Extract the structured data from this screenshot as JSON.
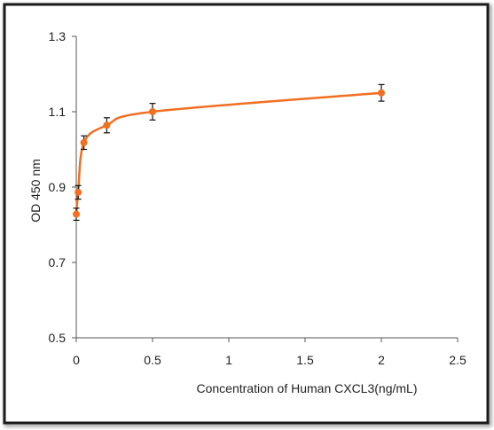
{
  "chart_data": {
    "type": "line",
    "title": "",
    "xlabel": "Concentration of Human CXCL3(ng/mL)",
    "ylabel": "OD 450 nm",
    "xlim": [
      0,
      2.5
    ],
    "ylim": [
      0.5,
      1.3
    ],
    "x_ticks": [
      0,
      0.5,
      1,
      1.5,
      2,
      2.5
    ],
    "x_tick_labels": [
      "0",
      "0.5",
      "1",
      "1.5",
      "2",
      "2.5"
    ],
    "y_ticks": [
      0.5,
      0.7,
      0.9,
      1.1,
      1.3
    ],
    "y_tick_labels": [
      "0.5",
      "0.7",
      "0.9",
      "1.1",
      "1.3"
    ],
    "grid": false,
    "legend": "none",
    "series": [
      {
        "x": [
          0,
          0.0125,
          0.05,
          0.2,
          0.5,
          2
        ],
        "y": [
          0.828,
          0.886,
          1.018,
          1.064,
          1.1,
          1.15
        ],
        "error": [
          0.016,
          0.018,
          0.018,
          0.02,
          0.022,
          0.022
        ],
        "color": "#f26f21",
        "smooth": true
      }
    ],
    "colors": {
      "series": "#f26f21",
      "axis": "#555555",
      "error_bar": "#111111",
      "text": "#222222"
    }
  }
}
